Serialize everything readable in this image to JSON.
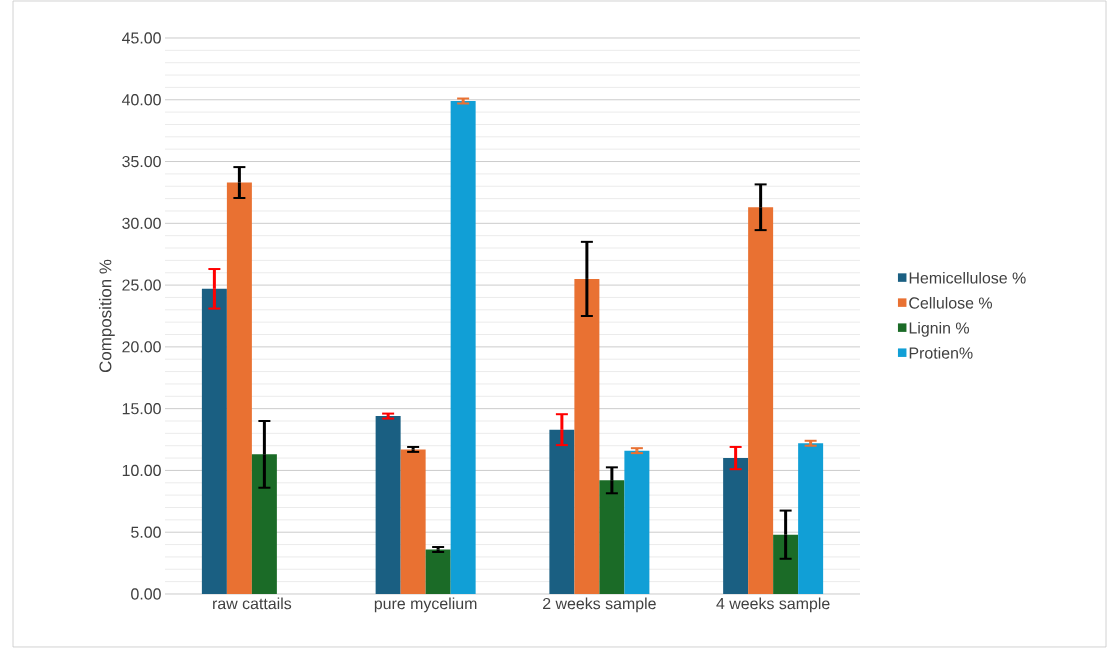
{
  "chart_data": {
    "type": "bar",
    "ylabel": "Composition %",
    "categories": [
      "raw cattails",
      "pure mycelium",
      "2 weeks sample",
      "4 weeks sample"
    ],
    "series": [
      {
        "name": "Hemicellulose %",
        "color": "#1a5f82",
        "values": [
          24.7,
          14.4,
          13.3,
          11.0
        ],
        "errors": [
          1.6,
          0.2,
          1.25,
          0.9
        ]
      },
      {
        "name": "Cellulose %",
        "color": "#e97132",
        "values": [
          33.3,
          11.7,
          25.5,
          31.3
        ],
        "errors": [
          1.25,
          0.2,
          3.0,
          1.85
        ]
      },
      {
        "name": "Lignin %",
        "color": "#1b6b27",
        "values": [
          11.3,
          3.6,
          9.2,
          4.8
        ],
        "errors": [
          2.7,
          0.2,
          1.05,
          1.95
        ]
      },
      {
        "name": "Protien%",
        "color": "#119fd6",
        "values": [
          null,
          39.9,
          11.6,
          12.2
        ],
        "errors": [
          null,
          0.2,
          0.2,
          0.2
        ]
      }
    ],
    "ylim": [
      0,
      45
    ],
    "yticks": [
      {
        "value": 0,
        "label": "0.00"
      },
      {
        "value": 5,
        "label": "5.00"
      },
      {
        "value": 10,
        "label": "10.00"
      },
      {
        "value": 15,
        "label": "15.00"
      },
      {
        "value": 20,
        "label": "20.00"
      },
      {
        "value": 25,
        "label": "25.00"
      },
      {
        "value": 30,
        "label": "30.00"
      },
      {
        "value": 35,
        "label": "35.00"
      },
      {
        "value": 40,
        "label": "40.00"
      },
      {
        "value": 45,
        "label": "45.00"
      }
    ],
    "grid": "y",
    "legend": "right"
  }
}
